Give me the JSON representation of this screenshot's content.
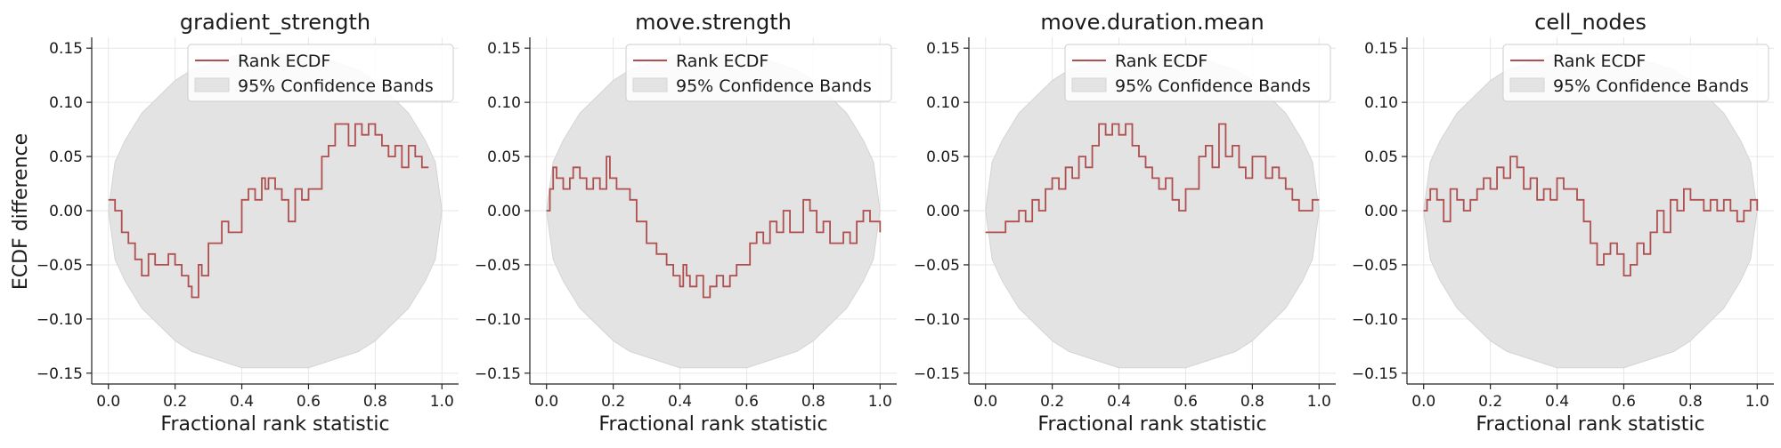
{
  "figure": {
    "ylabel": "ECDF difference",
    "legend": {
      "line_label": "Rank ECDF",
      "band_label": "95% Confidence Bands",
      "placement": "top-center"
    },
    "colors": {
      "line": "#b04f4f",
      "band": "#e3e3e3",
      "grid": "#e6e6e6",
      "axis": "#222222"
    }
  },
  "chart_data": [
    {
      "type": "line",
      "title": "gradient_strength",
      "xlabel": "Fractional rank statistic",
      "ylabel": "ECDF difference",
      "xlim": [
        -0.05,
        1.05
      ],
      "ylim": [
        -0.16,
        0.16
      ],
      "xticks": [
        "0.0",
        "0.2",
        "0.4",
        "0.6",
        "0.8",
        "1.0"
      ],
      "yticks": [
        "0.15",
        "0.10",
        "0.05",
        "0.00",
        "−0.05",
        "−0.10",
        "−0.15"
      ],
      "grid": true,
      "series": [
        {
          "name": "Rank ECDF",
          "x": [
            0.0,
            0.02,
            0.04,
            0.06,
            0.08,
            0.1,
            0.12,
            0.14,
            0.16,
            0.18,
            0.2,
            0.22,
            0.24,
            0.25,
            0.27,
            0.28,
            0.3,
            0.32,
            0.34,
            0.36,
            0.38,
            0.4,
            0.42,
            0.44,
            0.46,
            0.47,
            0.48,
            0.5,
            0.52,
            0.54,
            0.56,
            0.58,
            0.6,
            0.62,
            0.64,
            0.66,
            0.68,
            0.7,
            0.72,
            0.74,
            0.76,
            0.78,
            0.8,
            0.82,
            0.84,
            0.86,
            0.88,
            0.9,
            0.92,
            0.94,
            0.96
          ],
          "y": [
            0.01,
            0.0,
            -0.02,
            -0.03,
            -0.045,
            -0.06,
            -0.04,
            -0.05,
            -0.05,
            -0.04,
            -0.05,
            -0.06,
            -0.07,
            -0.08,
            -0.05,
            -0.06,
            -0.03,
            -0.03,
            -0.01,
            -0.02,
            -0.02,
            0.01,
            0.02,
            0.01,
            0.03,
            0.02,
            0.03,
            0.02,
            0.01,
            -0.01,
            0.02,
            0.01,
            0.02,
            0.02,
            0.05,
            0.06,
            0.08,
            0.08,
            0.06,
            0.08,
            0.07,
            0.08,
            0.07,
            0.06,
            0.05,
            0.06,
            0.04,
            0.06,
            0.05,
            0.04,
            0.04
          ]
        }
      ],
      "band": {
        "name": "95% Confidence Bands",
        "x": [
          0.0,
          0.02,
          0.05,
          0.1,
          0.15,
          0.2,
          0.25,
          0.3,
          0.35,
          0.4,
          0.45,
          0.5,
          0.55,
          0.6,
          0.65,
          0.7,
          0.75,
          0.8,
          0.85,
          0.9,
          0.95,
          0.98,
          1.0
        ],
        "upper": [
          0.0,
          0.045,
          0.065,
          0.09,
          0.105,
          0.12,
          0.13,
          0.135,
          0.14,
          0.145,
          0.145,
          0.145,
          0.145,
          0.145,
          0.14,
          0.135,
          0.13,
          0.12,
          0.105,
          0.09,
          0.065,
          0.045,
          0.0
        ],
        "lower": [
          0.0,
          -0.045,
          -0.065,
          -0.09,
          -0.105,
          -0.12,
          -0.13,
          -0.135,
          -0.14,
          -0.145,
          -0.145,
          -0.145,
          -0.145,
          -0.145,
          -0.14,
          -0.135,
          -0.13,
          -0.12,
          -0.105,
          -0.09,
          -0.065,
          -0.045,
          0.0
        ]
      }
    },
    {
      "type": "line",
      "title": "move.strength",
      "xlabel": "Fractional rank statistic",
      "ylabel": "",
      "xlim": [
        -0.05,
        1.05
      ],
      "ylim": [
        -0.16,
        0.16
      ],
      "xticks": [
        "0.0",
        "0.2",
        "0.4",
        "0.6",
        "0.8",
        "1.0"
      ],
      "yticks": [
        "0.15",
        "0.10",
        "0.05",
        "0.00",
        "−0.05",
        "−0.10",
        "−0.15"
      ],
      "grid": true,
      "series": [
        {
          "name": "Rank ECDF",
          "x": [
            0.0,
            0.01,
            0.02,
            0.03,
            0.05,
            0.07,
            0.08,
            0.1,
            0.12,
            0.14,
            0.16,
            0.18,
            0.19,
            0.21,
            0.23,
            0.25,
            0.27,
            0.3,
            0.33,
            0.36,
            0.38,
            0.4,
            0.41,
            0.42,
            0.43,
            0.45,
            0.47,
            0.49,
            0.51,
            0.53,
            0.55,
            0.57,
            0.59,
            0.61,
            0.63,
            0.65,
            0.67,
            0.69,
            0.71,
            0.73,
            0.75,
            0.77,
            0.79,
            0.81,
            0.83,
            0.85,
            0.87,
            0.89,
            0.91,
            0.93,
            0.95,
            0.97,
            1.0
          ],
          "y": [
            0.0,
            0.02,
            0.04,
            0.03,
            0.02,
            0.03,
            0.04,
            0.03,
            0.02,
            0.03,
            0.02,
            0.05,
            0.03,
            0.02,
            0.02,
            0.01,
            -0.01,
            -0.03,
            -0.04,
            -0.05,
            -0.06,
            -0.07,
            -0.05,
            -0.06,
            -0.07,
            -0.06,
            -0.08,
            -0.07,
            -0.06,
            -0.07,
            -0.06,
            -0.05,
            -0.05,
            -0.03,
            -0.02,
            -0.03,
            -0.01,
            -0.02,
            0.0,
            -0.02,
            -0.02,
            0.01,
            0.0,
            -0.02,
            -0.01,
            -0.03,
            -0.03,
            -0.02,
            -0.03,
            -0.01,
            0.0,
            -0.01,
            -0.02
          ]
        }
      ],
      "band": {
        "name": "95% Confidence Bands",
        "x": [
          0.0,
          0.02,
          0.05,
          0.1,
          0.15,
          0.2,
          0.25,
          0.3,
          0.35,
          0.4,
          0.45,
          0.5,
          0.55,
          0.6,
          0.65,
          0.7,
          0.75,
          0.8,
          0.85,
          0.9,
          0.95,
          0.98,
          1.0
        ],
        "upper": [
          0.0,
          0.045,
          0.065,
          0.09,
          0.105,
          0.12,
          0.13,
          0.135,
          0.14,
          0.145,
          0.145,
          0.145,
          0.145,
          0.145,
          0.14,
          0.135,
          0.13,
          0.12,
          0.105,
          0.09,
          0.065,
          0.045,
          0.0
        ],
        "lower": [
          0.0,
          -0.045,
          -0.065,
          -0.09,
          -0.105,
          -0.12,
          -0.13,
          -0.135,
          -0.14,
          -0.145,
          -0.145,
          -0.145,
          -0.145,
          -0.145,
          -0.14,
          -0.135,
          -0.13,
          -0.12,
          -0.105,
          -0.09,
          -0.065,
          -0.045,
          0.0
        ]
      }
    },
    {
      "type": "line",
      "title": "move.duration.mean",
      "xlabel": "Fractional rank statistic",
      "ylabel": "",
      "xlim": [
        -0.05,
        1.05
      ],
      "ylim": [
        -0.16,
        0.16
      ],
      "xticks": [
        "0.0",
        "0.2",
        "0.4",
        "0.6",
        "0.8",
        "1.0"
      ],
      "yticks": [
        "0.15",
        "0.10",
        "0.05",
        "0.00",
        "−0.05",
        "−0.10",
        "−0.15"
      ],
      "grid": true,
      "series": [
        {
          "name": "Rank ECDF",
          "x": [
            0.0,
            0.03,
            0.06,
            0.08,
            0.1,
            0.12,
            0.14,
            0.16,
            0.18,
            0.2,
            0.22,
            0.24,
            0.26,
            0.28,
            0.3,
            0.32,
            0.34,
            0.36,
            0.38,
            0.4,
            0.42,
            0.44,
            0.46,
            0.48,
            0.5,
            0.52,
            0.54,
            0.56,
            0.58,
            0.6,
            0.62,
            0.64,
            0.66,
            0.68,
            0.7,
            0.72,
            0.74,
            0.76,
            0.78,
            0.8,
            0.82,
            0.84,
            0.86,
            0.88,
            0.9,
            0.92,
            0.94,
            0.96,
            0.98,
            1.0
          ],
          "y": [
            -0.02,
            -0.02,
            -0.01,
            -0.01,
            0.0,
            -0.01,
            0.01,
            0.0,
            0.02,
            0.03,
            0.02,
            0.04,
            0.03,
            0.05,
            0.04,
            0.06,
            0.08,
            0.07,
            0.08,
            0.07,
            0.08,
            0.06,
            0.05,
            0.04,
            0.03,
            0.02,
            0.03,
            0.01,
            0.0,
            0.02,
            0.02,
            0.05,
            0.06,
            0.04,
            0.08,
            0.05,
            0.06,
            0.04,
            0.03,
            0.05,
            0.05,
            0.03,
            0.04,
            0.03,
            0.02,
            0.01,
            0.0,
            0.0,
            0.01,
            0.01
          ]
        }
      ],
      "band": {
        "name": "95% Confidence Bands",
        "x": [
          0.0,
          0.02,
          0.05,
          0.1,
          0.15,
          0.2,
          0.25,
          0.3,
          0.35,
          0.4,
          0.45,
          0.5,
          0.55,
          0.6,
          0.65,
          0.7,
          0.75,
          0.8,
          0.85,
          0.9,
          0.95,
          0.98,
          1.0
        ],
        "upper": [
          0.0,
          0.045,
          0.065,
          0.09,
          0.105,
          0.12,
          0.13,
          0.135,
          0.14,
          0.145,
          0.145,
          0.145,
          0.145,
          0.145,
          0.14,
          0.135,
          0.13,
          0.12,
          0.105,
          0.09,
          0.065,
          0.045,
          0.0
        ],
        "lower": [
          0.0,
          -0.045,
          -0.065,
          -0.09,
          -0.105,
          -0.12,
          -0.13,
          -0.135,
          -0.14,
          -0.145,
          -0.145,
          -0.145,
          -0.145,
          -0.145,
          -0.14,
          -0.135,
          -0.13,
          -0.12,
          -0.105,
          -0.09,
          -0.065,
          -0.045,
          0.0
        ]
      }
    },
    {
      "type": "line",
      "title": "cell_nodes",
      "xlabel": "Fractional rank statistic",
      "ylabel": "",
      "xlim": [
        -0.05,
        1.05
      ],
      "ylim": [
        -0.16,
        0.16
      ],
      "xticks": [
        "0.0",
        "0.2",
        "0.4",
        "0.6",
        "0.8",
        "1.0"
      ],
      "yticks": [
        "0.15",
        "0.10",
        "0.05",
        "0.00",
        "−0.05",
        "−0.10",
        "−0.15"
      ],
      "grid": true,
      "series": [
        {
          "name": "Rank ECDF",
          "x": [
            0.0,
            0.01,
            0.02,
            0.04,
            0.06,
            0.08,
            0.1,
            0.12,
            0.14,
            0.16,
            0.18,
            0.2,
            0.22,
            0.24,
            0.26,
            0.28,
            0.3,
            0.32,
            0.34,
            0.36,
            0.38,
            0.4,
            0.42,
            0.44,
            0.46,
            0.48,
            0.5,
            0.52,
            0.54,
            0.56,
            0.58,
            0.6,
            0.62,
            0.64,
            0.66,
            0.68,
            0.7,
            0.72,
            0.74,
            0.76,
            0.78,
            0.8,
            0.82,
            0.84,
            0.86,
            0.88,
            0.9,
            0.92,
            0.94,
            0.96,
            0.98,
            1.0
          ],
          "y": [
            0.0,
            0.01,
            0.02,
            0.01,
            -0.01,
            0.02,
            0.01,
            0.0,
            0.01,
            0.02,
            0.03,
            0.02,
            0.04,
            0.03,
            0.05,
            0.04,
            0.02,
            0.03,
            0.01,
            0.02,
            0.01,
            0.03,
            0.02,
            0.02,
            0.01,
            -0.01,
            -0.03,
            -0.05,
            -0.04,
            -0.03,
            -0.04,
            -0.06,
            -0.05,
            -0.03,
            -0.04,
            -0.02,
            0.0,
            -0.02,
            0.01,
            0.0,
            0.02,
            0.01,
            0.01,
            0.0,
            0.01,
            0.0,
            0.01,
            0.0,
            -0.01,
            0.0,
            0.01,
            0.0
          ]
        }
      ],
      "band": {
        "name": "95% Confidence Bands",
        "x": [
          0.0,
          0.02,
          0.05,
          0.1,
          0.15,
          0.2,
          0.25,
          0.3,
          0.35,
          0.4,
          0.45,
          0.5,
          0.55,
          0.6,
          0.65,
          0.7,
          0.75,
          0.8,
          0.85,
          0.9,
          0.95,
          0.98,
          1.0
        ],
        "upper": [
          0.0,
          0.045,
          0.065,
          0.09,
          0.105,
          0.12,
          0.13,
          0.135,
          0.14,
          0.145,
          0.145,
          0.145,
          0.145,
          0.145,
          0.14,
          0.135,
          0.13,
          0.12,
          0.105,
          0.09,
          0.065,
          0.045,
          0.0
        ],
        "lower": [
          0.0,
          -0.045,
          -0.065,
          -0.09,
          -0.105,
          -0.12,
          -0.13,
          -0.135,
          -0.14,
          -0.145,
          -0.145,
          -0.145,
          -0.145,
          -0.145,
          -0.14,
          -0.135,
          -0.13,
          -0.12,
          -0.105,
          -0.09,
          -0.065,
          -0.045,
          0.0
        ]
      }
    }
  ]
}
